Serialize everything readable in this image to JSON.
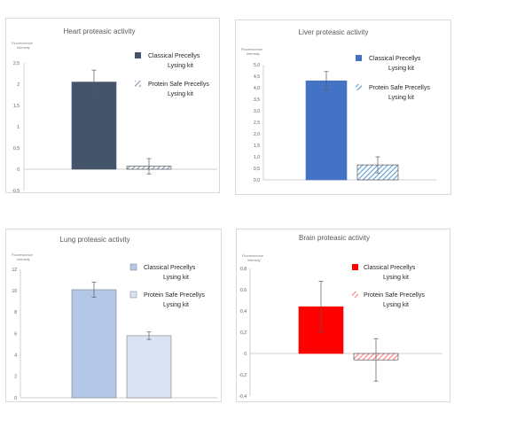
{
  "colors": {
    "heart_classical": "#44546a",
    "heart_safe": "#8497b0",
    "liver_classical": "#4472c4",
    "liver_safe": "#5b9bd5",
    "lung_classical": "#b4c7e7",
    "lung_safe": "#dae3f3",
    "brain_classical": "#ff0000",
    "brain_safe": "#ff7c80"
  },
  "chart_data": [
    {
      "type": "bar",
      "title": "Heart proteasic activity",
      "ylabel": "Fluorescence intensity",
      "ylim": [
        -0.5,
        2.5
      ],
      "ytick_values": [
        -0.5,
        0,
        0.5,
        1,
        1.5,
        2,
        2.5
      ],
      "ytick_labels": [
        "-0,5",
        "0",
        "0,5",
        "1",
        "1,5",
        "2",
        "2,5"
      ],
      "grid": false,
      "legend_position": "right",
      "series": [
        {
          "name": "Classical Precellys Lysing kit",
          "legend_lines": [
            "Classical Precellys",
            "Lysing kit"
          ],
          "value": 2.05,
          "error": 0.28,
          "pattern": "solid",
          "color_key": "heart_classical"
        },
        {
          "name": "Protein Safe Precellys Lysing kit",
          "legend_lines": [
            "Protein Safe Precellys",
            "Lysing kit"
          ],
          "value": 0.07,
          "error": 0.18,
          "pattern": "hatched",
          "color_key": "heart_safe"
        }
      ]
    },
    {
      "type": "bar",
      "title": "Liver proteasic activity",
      "ylabel": "Fluorescence intensity",
      "ylim": [
        0,
        5
      ],
      "ytick_values": [
        0,
        0.5,
        1,
        1.5,
        2,
        2.5,
        3,
        3.5,
        4,
        4.5,
        5
      ],
      "ytick_labels": [
        "0,0",
        "0,5",
        "1,0",
        "1,5",
        "2,0",
        "2,5",
        "3,0",
        "3,5",
        "4,0",
        "4,5",
        "5,0"
      ],
      "grid": false,
      "legend_position": "right",
      "series": [
        {
          "name": "Classical Precellys Lysing kit",
          "legend_lines": [
            "Classical Precellys",
            "Lysing kit"
          ],
          "value": 4.3,
          "error": 0.4,
          "pattern": "solid",
          "color_key": "liver_classical"
        },
        {
          "name": "Protein Safe Precellys Lysing kit",
          "legend_lines": [
            "Protein Safe Precellys",
            "Lysing kit"
          ],
          "value": 0.65,
          "error": 0.35,
          "pattern": "hatched",
          "color_key": "liver_safe"
        }
      ]
    },
    {
      "type": "bar",
      "title": "Lung proteasic activity",
      "ylabel": "Fluorescence intensity",
      "ylim": [
        0,
        12
      ],
      "ytick_values": [
        0,
        2,
        4,
        6,
        8,
        10,
        12
      ],
      "ytick_labels": [
        "0",
        "2",
        "4",
        "6",
        "8",
        "10",
        "12"
      ],
      "grid": false,
      "legend_position": "right",
      "series": [
        {
          "name": "Classical Precellys Lysing kit",
          "legend_lines": [
            "Classical Precellys",
            "Lysing kit"
          ],
          "value": 10.1,
          "error": 0.7,
          "pattern": "solid",
          "color_key": "lung_classical"
        },
        {
          "name": "Protein Safe Precellys Lysing kit",
          "legend_lines": [
            "Protein Safe Precellys",
            "Lysing kit"
          ],
          "value": 5.8,
          "error": 0.35,
          "pattern": "solid",
          "color_key": "lung_safe"
        }
      ]
    },
    {
      "type": "bar",
      "title": "Brain proteasic activity",
      "ylabel": "Fluorescence intensity",
      "ylim": [
        -0.4,
        0.8
      ],
      "ytick_values": [
        -0.4,
        -0.2,
        0,
        0.2,
        0.4,
        0.6,
        0.8
      ],
      "ytick_labels": [
        "-0,4",
        "-0,2",
        "0",
        "0,2",
        "0,4",
        "0,6",
        "0,8"
      ],
      "grid": false,
      "legend_position": "right",
      "series": [
        {
          "name": "Classical Precellys Lysing kit",
          "legend_lines": [
            "Classical Precellys",
            "Lysing kit"
          ],
          "value": 0.44,
          "error": 0.24,
          "pattern": "solid",
          "color_key": "brain_classical"
        },
        {
          "name": "Protein Safe Precellys Lysing kit",
          "legend_lines": [
            "Protein Safe Precellys",
            "Lysing kit"
          ],
          "value": -0.06,
          "error": 0.2,
          "pattern": "hatched",
          "color_key": "brain_safe"
        }
      ]
    }
  ]
}
